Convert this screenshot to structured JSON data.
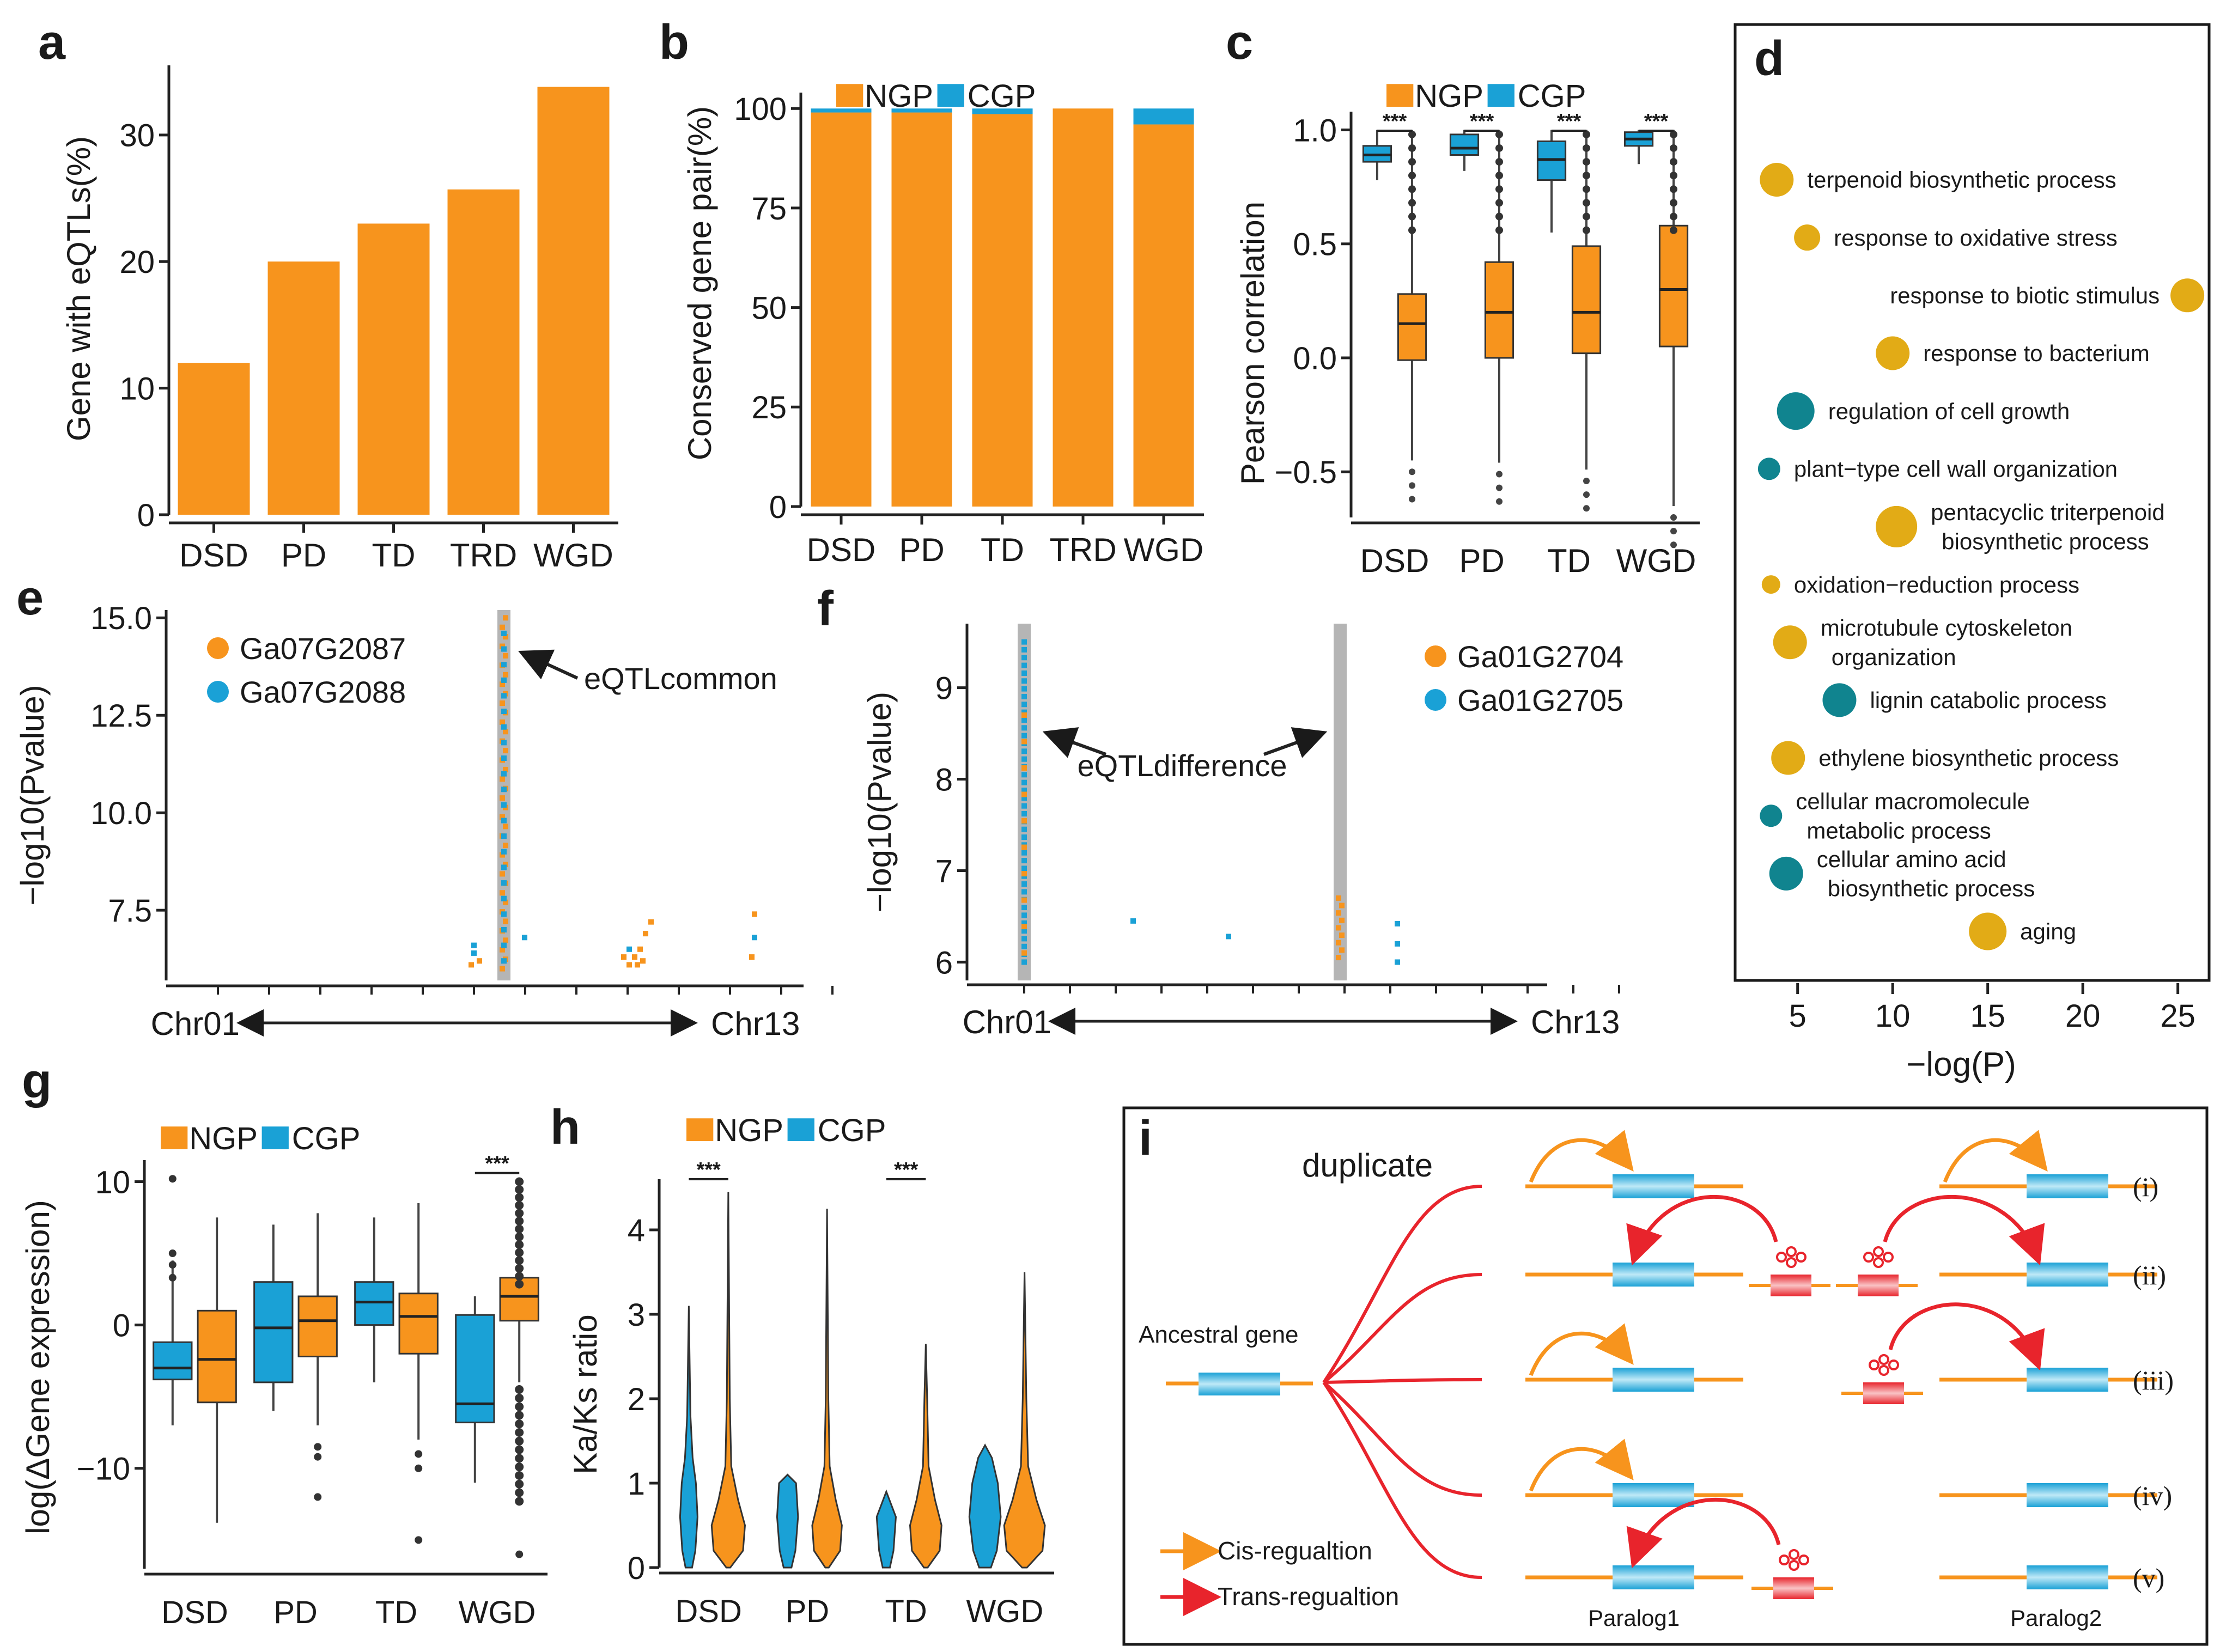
{
  "colors": {
    "ngp": "#f7941d",
    "cgp": "#1aa1d6",
    "teal": "#10848f",
    "gold": "#e2ab16",
    "red": "#e8242c",
    "grey": "#b5b5b5",
    "dark": "#222222"
  },
  "panels": [
    {
      "letter": "a"
    },
    {
      "letter": "b"
    },
    {
      "letter": "c"
    },
    {
      "letter": "d"
    },
    {
      "letter": "e"
    },
    {
      "letter": "f"
    },
    {
      "letter": "g"
    },
    {
      "letter": "h"
    },
    {
      "letter": "i"
    }
  ],
  "chart_data": [
    {
      "id": "a",
      "type": "bar",
      "categories": [
        "DSD",
        "PD",
        "TD",
        "TRD",
        "WGD"
      ],
      "values": [
        12,
        20,
        23,
        25.7,
        33.8
      ],
      "ylabel": "Gene with eQTLs(%)",
      "yticks": [
        0,
        10,
        20,
        30
      ],
      "ylim": [
        0,
        35.5
      ]
    },
    {
      "id": "b",
      "type": "bar",
      "stacked": true,
      "categories": [
        "DSD",
        "PD",
        "TD",
        "TRD",
        "WGD"
      ],
      "legend": {
        "ngp": "NGP",
        "cgp": "CGP"
      },
      "series": [
        {
          "name": "NGP",
          "values": [
            99,
            99,
            98.6,
            100,
            96
          ]
        },
        {
          "name": "CGP",
          "values": [
            1,
            1,
            1.4,
            0,
            4
          ]
        }
      ],
      "ylabel": "Conserved gene pair(%)",
      "yticks": [
        0,
        25,
        50,
        75,
        100
      ],
      "ylim": [
        0,
        104
      ]
    },
    {
      "id": "c",
      "type": "box",
      "categories": [
        "DSD",
        "PD",
        "TD",
        "WGD"
      ],
      "legend": {
        "ngp": "NGP",
        "cgp": "CGP"
      },
      "sig": "***",
      "cgp": [
        {
          "q1": 0.86,
          "med": 0.89,
          "q3": 0.93,
          "lo": 0.78,
          "hi": 1.0
        },
        {
          "q1": 0.89,
          "med": 0.92,
          "q3": 0.98,
          "lo": 0.82,
          "hi": 1.0
        },
        {
          "q1": 0.78,
          "med": 0.87,
          "q3": 0.95,
          "lo": 0.55,
          "hi": 1.0
        },
        {
          "q1": 0.93,
          "med": 0.96,
          "q3": 0.99,
          "lo": 0.85,
          "hi": 1.0
        }
      ],
      "ngp": [
        {
          "q1": -0.01,
          "med": 0.15,
          "q3": 0.28,
          "lo": -0.45,
          "hi": 1.0
        },
        {
          "q1": 0.0,
          "med": 0.2,
          "q3": 0.42,
          "lo": -0.46,
          "hi": 1.0
        },
        {
          "q1": 0.02,
          "med": 0.2,
          "q3": 0.49,
          "lo": -0.49,
          "hi": 1.0
        },
        {
          "q1": 0.05,
          "med": 0.3,
          "q3": 0.58,
          "lo": -0.65,
          "hi": 1.0
        }
      ],
      "ylabel": "Pearson correlation",
      "yticks": [
        -0.5,
        0.0,
        0.5,
        1.0
      ],
      "ytick_labels": [
        "−0.5",
        "0.0",
        "0.5",
        "1.0"
      ],
      "ylim": [
        -0.7,
        1.08
      ]
    },
    {
      "id": "d",
      "type": "dot",
      "xlabel": "−log(P)",
      "xticks": [
        5,
        10,
        15,
        20,
        25
      ],
      "xlim": [
        2,
        26.5
      ],
      "terms": [
        {
          "label": "terpenoid biosynthetic process",
          "x": 3.9,
          "size": 3,
          "color": "gold",
          "side": "right"
        },
        {
          "label": "response to oxidative stress",
          "x": 5.5,
          "size": 2,
          "color": "gold",
          "side": "right"
        },
        {
          "label": "response to biotic stimulus",
          "x": 25.5,
          "size": 3,
          "color": "gold",
          "side": "left"
        },
        {
          "label": "response to bacterium",
          "x": 10,
          "size": 3,
          "color": "gold",
          "side": "right"
        },
        {
          "label": "regulation of cell growth",
          "x": 4.9,
          "size": 3.5,
          "color": "teal",
          "side": "right"
        },
        {
          "label": "plant−type cell wall organization",
          "x": 3.5,
          "size": 1.5,
          "color": "teal",
          "side": "right"
        },
        {
          "label": "pentacyclic triterpenoid biosynthetic process",
          "x": 10.2,
          "size": 4,
          "color": "gold",
          "side": "right",
          "twoLine": true
        },
        {
          "label": "oxidation−reduction process",
          "x": 3.6,
          "size": 1,
          "color": "gold",
          "side": "right"
        },
        {
          "label": "microtubule cytoskeleton organization",
          "x": 4.6,
          "size": 3,
          "color": "gold",
          "side": "right",
          "twoLine": true
        },
        {
          "label": "lignin catabolic process",
          "x": 7.2,
          "size": 3,
          "color": "teal",
          "side": "right"
        },
        {
          "label": "ethylene biosynthetic process",
          "x": 4.5,
          "size": 3,
          "color": "gold",
          "side": "right"
        },
        {
          "label": "cellular macromolecule metabolic process",
          "x": 3.6,
          "size": 1.5,
          "color": "teal",
          "side": "right",
          "twoLine": true
        },
        {
          "label": "cellular amino acid biosynthetic process",
          "x": 4.4,
          "size": 3,
          "color": "teal",
          "side": "right",
          "twoLine": true
        },
        {
          "label": "aging",
          "x": 15,
          "size": 3.5,
          "color": "gold",
          "side": "right"
        }
      ]
    },
    {
      "id": "e",
      "type": "manhattan",
      "xlabel_left": "Chr01",
      "xlabel_right": "Chr13",
      "legend": [
        "Ga07G2087",
        "Ga07G2088"
      ],
      "annotation": "eQTLcommon",
      "ylabel": "−log10(Pvalue)",
      "yticks": [
        7.5,
        10,
        12.5,
        15
      ],
      "ytick_labels": [
        "7.5",
        "10.0",
        "12.5",
        "15.0"
      ],
      "ylim": [
        5.7,
        15.2
      ]
    },
    {
      "id": "f",
      "type": "manhattan",
      "xlabel_left": "Chr01",
      "xlabel_right": "Chr13",
      "legend": [
        "Ga01G2704",
        "Ga01G2705"
      ],
      "annotation": "eQTLdifference",
      "ylabel": "−log10(Pvalue)",
      "yticks": [
        6,
        7,
        8,
        9
      ],
      "ytick_labels": [
        "6",
        "7",
        "8",
        "9"
      ],
      "ylim": [
        5.8,
        9.7
      ]
    },
    {
      "id": "g",
      "type": "box",
      "categories": [
        "DSD",
        "PD",
        "TD",
        "WGD"
      ],
      "legend": {
        "ngp": "NGP",
        "cgp": "CGP"
      },
      "sig": "***",
      "cgp": [
        {
          "q1": -3.8,
          "med": -3,
          "q3": -1.2,
          "lo": -7,
          "hi": 4.5
        },
        {
          "q1": -4,
          "med": -0.2,
          "q3": 3,
          "lo": -6,
          "hi": 7
        },
        {
          "q1": 0,
          "med": 1.6,
          "q3": 3,
          "lo": -4,
          "hi": 7.5
        },
        {
          "q1": -6.8,
          "med": -5.5,
          "q3": 0.7,
          "lo": -11,
          "hi": 2
        }
      ],
      "ngp": [
        {
          "q1": -5.4,
          "med": -2.4,
          "q3": 1,
          "lo": -13.8,
          "hi": 7.5
        },
        {
          "q1": -2.2,
          "med": 0.3,
          "q3": 2,
          "lo": -7,
          "hi": 7.8
        },
        {
          "q1": -2,
          "med": 0.6,
          "q3": 2.2,
          "lo": -8,
          "hi": 8.5
        },
        {
          "q1": 0.3,
          "med": 2,
          "q3": 3.3,
          "lo": -4,
          "hi": 9.5
        }
      ],
      "ylabel": "log(ΔGene expression)",
      "yticks": [
        -10,
        0,
        10
      ],
      "ytick_labels": [
        "−10",
        "0",
        "10"
      ],
      "ylim": [
        -17,
        11.5
      ]
    },
    {
      "id": "h",
      "type": "violin",
      "categories": [
        "DSD",
        "PD",
        "TD",
        "WGD"
      ],
      "legend": {
        "ngp": "NGP",
        "cgp": "CGP"
      },
      "sig": "***",
      "ylabel": "Ka/Ks ratio",
      "yticks": [
        0,
        1,
        2,
        3,
        4
      ],
      "ytick_labels": [
        "0",
        "1",
        "2",
        "3",
        "4"
      ],
      "ylim": [
        0,
        4.6
      ],
      "cgp_top": [
        3.1,
        1.1,
        0.9,
        1.45
      ],
      "ngp_top": [
        4.45,
        4.25,
        2.65,
        3.5
      ]
    }
  ],
  "diagram": {
    "duplicate": "duplicate",
    "ancestral": "Ancestral gene",
    "rows": [
      "(i)",
      "(ii)",
      "(iii)",
      "(iv)",
      "(v)"
    ],
    "paralog1": "Paralog1",
    "paralog2": "Paralog2",
    "cis": "Cis-regualtion",
    "trans": "Trans-regualtion"
  }
}
